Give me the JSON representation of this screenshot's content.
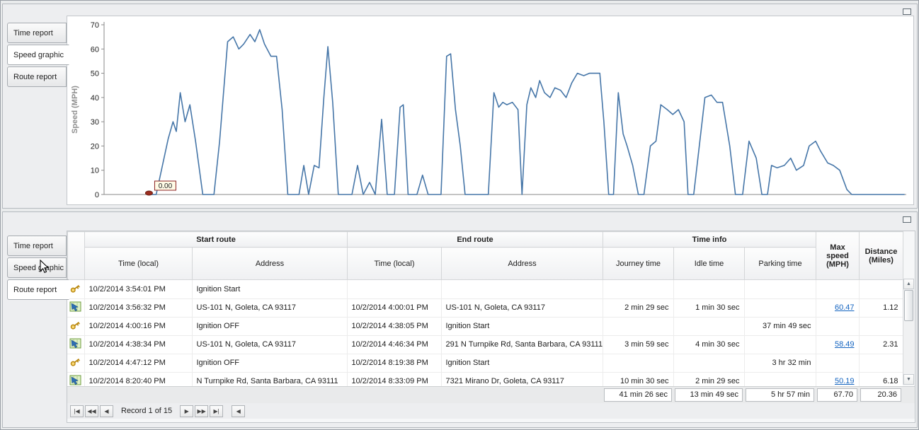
{
  "top_panel": {
    "collapse_icon": "panel-collapse",
    "tabs": [
      {
        "label": "Time report"
      },
      {
        "label": "Speed graphic"
      },
      {
        "label": "Route report"
      }
    ],
    "active_tab": 1,
    "chart_data": {
      "type": "line",
      "title": "",
      "xlabel": "",
      "ylabel": "Speed (MPH)",
      "ylim": [
        0,
        70
      ],
      "yticks": [
        0,
        10,
        20,
        30,
        40,
        50,
        60,
        70
      ],
      "grid": false,
      "legend": false,
      "line_color": "#4676a8",
      "annotation": "0.00",
      "points": [
        [
          56,
          0
        ],
        [
          65,
          0
        ],
        [
          80,
          23
        ],
        [
          86,
          30
        ],
        [
          90,
          26
        ],
        [
          95,
          42
        ],
        [
          101,
          30
        ],
        [
          107,
          37
        ],
        [
          114,
          22
        ],
        [
          123,
          0
        ],
        [
          137,
          0
        ],
        [
          144,
          22
        ],
        [
          154,
          63
        ],
        [
          161,
          65
        ],
        [
          168,
          60
        ],
        [
          174,
          62
        ],
        [
          182,
          66
        ],
        [
          188,
          63
        ],
        [
          194,
          68
        ],
        [
          200,
          62
        ],
        [
          208,
          57
        ],
        [
          215,
          57
        ],
        [
          222,
          35
        ],
        [
          229,
          0
        ],
        [
          243,
          0
        ],
        [
          249,
          12
        ],
        [
          255,
          0
        ],
        [
          262,
          12
        ],
        [
          268,
          11
        ],
        [
          274,
          40
        ],
        [
          279,
          61
        ],
        [
          285,
          38
        ],
        [
          292,
          0
        ],
        [
          309,
          0
        ],
        [
          316,
          12
        ],
        [
          323,
          0
        ],
        [
          331,
          5
        ],
        [
          338,
          0
        ],
        [
          346,
          31
        ],
        [
          353,
          0
        ],
        [
          362,
          0
        ],
        [
          369,
          36
        ],
        [
          373,
          37
        ],
        [
          379,
          0
        ],
        [
          390,
          0
        ],
        [
          397,
          8
        ],
        [
          404,
          0
        ],
        [
          420,
          0
        ],
        [
          427,
          57
        ],
        [
          432,
          58
        ],
        [
          438,
          35
        ],
        [
          444,
          20
        ],
        [
          450,
          0
        ],
        [
          479,
          0
        ],
        [
          486,
          42
        ],
        [
          492,
          36
        ],
        [
          497,
          38
        ],
        [
          502,
          37
        ],
        [
          509,
          38
        ],
        [
          516,
          35
        ],
        [
          521,
          0
        ],
        [
          527,
          37
        ],
        [
          532,
          44
        ],
        [
          538,
          40
        ],
        [
          543,
          47
        ],
        [
          549,
          42
        ],
        [
          556,
          40
        ],
        [
          562,
          44
        ],
        [
          569,
          43
        ],
        [
          576,
          40
        ],
        [
          583,
          46
        ],
        [
          590,
          50
        ],
        [
          598,
          49
        ],
        [
          605,
          50
        ],
        [
          612,
          50
        ],
        [
          618,
          50
        ],
        [
          623,
          30
        ],
        [
          629,
          0
        ],
        [
          635,
          0
        ],
        [
          641,
          42
        ],
        [
          647,
          25
        ],
        [
          652,
          20
        ],
        [
          659,
          12
        ],
        [
          666,
          0
        ],
        [
          673,
          0
        ],
        [
          681,
          20
        ],
        [
          688,
          22
        ],
        [
          694,
          37
        ],
        [
          702,
          35
        ],
        [
          709,
          33
        ],
        [
          716,
          35
        ],
        [
          723,
          30
        ],
        [
          728,
          0
        ],
        [
          735,
          0
        ],
        [
          742,
          20
        ],
        [
          749,
          40
        ],
        [
          757,
          41
        ],
        [
          764,
          38
        ],
        [
          771,
          38
        ],
        [
          780,
          20
        ],
        [
          787,
          0
        ],
        [
          796,
          0
        ],
        [
          804,
          22
        ],
        [
          813,
          15
        ],
        [
          820,
          0
        ],
        [
          827,
          0
        ],
        [
          832,
          12
        ],
        [
          839,
          11
        ],
        [
          848,
          12
        ],
        [
          856,
          15
        ],
        [
          863,
          10
        ],
        [
          872,
          12
        ],
        [
          879,
          20
        ],
        [
          887,
          22
        ],
        [
          893,
          18
        ],
        [
          902,
          13
        ],
        [
          909,
          12
        ],
        [
          917,
          10
        ],
        [
          926,
          2
        ],
        [
          932,
          0
        ],
        [
          955,
          0
        ],
        [
          998,
          0
        ]
      ]
    }
  },
  "bottom_panel": {
    "collapse_icon": "panel-collapse",
    "tabs": [
      {
        "label": "Time report"
      },
      {
        "label": "Speed graphic"
      },
      {
        "label": "Route report"
      }
    ],
    "active_tab": 2,
    "table": {
      "group_headers": [
        "Start route",
        "End route",
        "Time info"
      ],
      "sub_headers": [
        "Time (local)",
        "Address",
        "Time (local)",
        "Address",
        "Journey time",
        "Idle time",
        "Parking time"
      ],
      "col_max_speed": "Max speed (MPH)",
      "col_distance": "Distance (Miles)",
      "rows": [
        {
          "icon": "key-icon",
          "start_time": "10/2/2014 3:54:01 PM",
          "start_address": "Ignition Start",
          "end_time": "",
          "end_address": "",
          "journey": "",
          "idle": "",
          "parking": "",
          "max_speed": "",
          "max_speed_link": false,
          "distance": ""
        },
        {
          "icon": "route-icon",
          "start_time": "10/2/2014 3:56:32 PM",
          "start_address": "US-101 N, Goleta, CA 93117",
          "end_time": "10/2/2014 4:00:01 PM",
          "end_address": "US-101 N, Goleta, CA 93117",
          "journey": "2 min 29 sec",
          "idle": "1 min 30 sec",
          "parking": "",
          "max_speed": "60.47",
          "max_speed_link": true,
          "distance": "1.12"
        },
        {
          "icon": "key-icon",
          "start_time": "10/2/2014 4:00:16 PM",
          "start_address": "Ignition OFF",
          "end_time": "10/2/2014 4:38:05 PM",
          "end_address": "Ignition Start",
          "journey": "",
          "idle": "",
          "parking": "37 min 49 sec",
          "max_speed": "",
          "max_speed_link": false,
          "distance": ""
        },
        {
          "icon": "route-icon",
          "start_time": "10/2/2014 4:38:34 PM",
          "start_address": "US-101 N, Goleta, CA 93117",
          "end_time": "10/2/2014 4:46:34 PM",
          "end_address": "291 N Turnpike Rd, Santa Barbara, CA 93111",
          "journey": "3 min 59 sec",
          "idle": "4 min 30 sec",
          "parking": "",
          "max_speed": "58.49",
          "max_speed_link": true,
          "distance": "2.31"
        },
        {
          "icon": "key-icon",
          "start_time": "10/2/2014 4:47:12 PM",
          "start_address": "Ignition OFF",
          "end_time": "10/2/2014 8:19:38 PM",
          "end_address": "Ignition Start",
          "journey": "",
          "idle": "",
          "parking": "3 hr 32 min",
          "max_speed": "",
          "max_speed_link": false,
          "distance": ""
        },
        {
          "icon": "route-icon",
          "start_time": "10/2/2014 8:20:40 PM",
          "start_address": "N Turnpike Rd, Santa Barbara, CA 93111",
          "end_time": "10/2/2014 8:33:09 PM",
          "end_address": "7321 Mirano Dr, Goleta, CA 93117",
          "journey": "10 min 30 sec",
          "idle": "2 min 29 sec",
          "parking": "",
          "max_speed": "50.19",
          "max_speed_link": true,
          "distance": "6.18"
        }
      ],
      "summary": {
        "journey": "41 min 26 sec",
        "idle": "13 min 49 sec",
        "parking": "5 hr 57 min",
        "max_speed": "67.70",
        "distance": "20.36"
      }
    },
    "navigator": {
      "first": "|◀",
      "prev_page": "◀◀",
      "prev": "◀",
      "record_text": "Record 1 of 15",
      "next": "▶",
      "next_page": "▶▶",
      "last": "▶|",
      "hscroll_left": "◀"
    },
    "scrollbar": {
      "up": "▲",
      "down": "▼"
    }
  }
}
